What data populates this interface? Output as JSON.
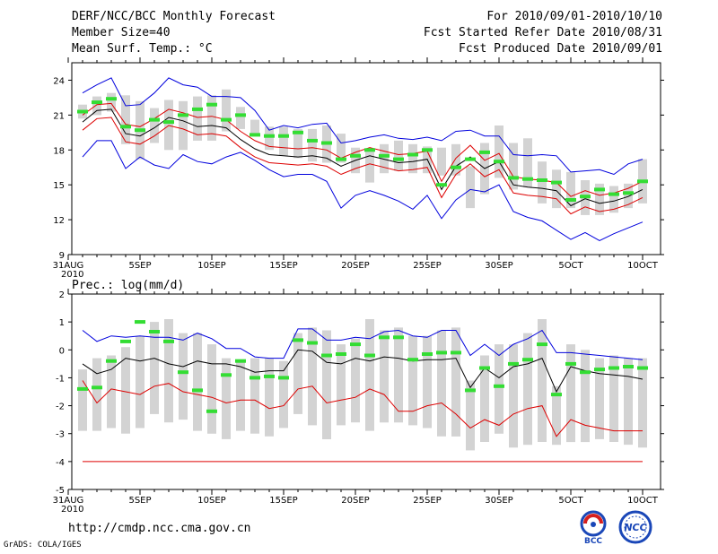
{
  "header": {
    "title": "DERF/NCC/BCC Monthly Forecast",
    "member_size": "Member Size=40",
    "variable": "Mean Surf. Temp.: °C",
    "period": "For 2010/09/01-2010/10/10",
    "started": "Fcst Started Refer Date 2010/08/31",
    "produced": "Fcst Produced Date 2010/09/01"
  },
  "footer": {
    "url": "http://cmdp.ncc.cma.gov.cn",
    "credit": "GrADS: COLA/IGES",
    "logo1": "BCC",
    "logo2": "NCC"
  },
  "colors": {
    "box": "#d3d3d3",
    "green": "#33dd33",
    "red": "#dd0000",
    "blue": "#0000dd",
    "line": "#000000"
  },
  "chart_data": [
    {
      "type": "box-ensemble",
      "title": "Mean Surf. Temp.: °C",
      "x_ticks": [
        "31AUG",
        "5SEP",
        "10SEP",
        "15SEP",
        "20SEP",
        "25SEP",
        "30SEP",
        "5OCT",
        "10OCT"
      ],
      "x_sub": "2010",
      "ylim": [
        9,
        25.5
      ],
      "yticks": [
        9,
        12,
        15,
        18,
        21,
        24
      ],
      "days": 40,
      "box_low": [
        20.7,
        21.0,
        21.3,
        18.5,
        17.2,
        18.6,
        18.0,
        18.0,
        18.8,
        18.8,
        19.6,
        19.8,
        19.2,
        18.0,
        17.5,
        17.3,
        17.0,
        16.9,
        16.9,
        16.0,
        15.2,
        16.0,
        16.2,
        16.0,
        16.0,
        15.8,
        15.8,
        13.0,
        14.2,
        15.6,
        14.6,
        14.8,
        13.4,
        13.0,
        13.0,
        12.4,
        12.4,
        12.6,
        13.0,
        13.4
      ],
      "box_high": [
        21.9,
        22.6,
        22.9,
        22.7,
        22.2,
        21.6,
        22.3,
        22.2,
        22.6,
        22.7,
        23.2,
        21.7,
        20.6,
        20.0,
        20.0,
        19.8,
        19.8,
        20.1,
        19.4,
        18.2,
        17.9,
        18.5,
        18.8,
        18.5,
        18.3,
        18.2,
        18.5,
        16.6,
        18.6,
        20.1,
        18.6,
        19.0,
        17.0,
        16.3,
        16.1,
        15.4,
        15.1,
        14.9,
        15.1,
        17.2
      ],
      "green": [
        21.3,
        22.1,
        22.4,
        20.0,
        19.7,
        20.6,
        20.4,
        21.0,
        21.5,
        21.9,
        20.6,
        21.0,
        19.3,
        19.2,
        19.2,
        19.5,
        18.8,
        18.6,
        17.2,
        17.5,
        18.0,
        17.5,
        17.2,
        17.6,
        18.0,
        15.0,
        16.5,
        17.2,
        17.8,
        17.0,
        15.6,
        15.5,
        15.4,
        15.2,
        13.7,
        14.0,
        14.6,
        14.2,
        14.3,
        15.3
      ],
      "mean": [
        20.4,
        21.4,
        21.5,
        19.4,
        19.2,
        19.9,
        20.8,
        20.5,
        20.0,
        20.1,
        19.9,
        18.9,
        18.1,
        17.6,
        17.5,
        17.4,
        17.5,
        17.3,
        16.6,
        17.1,
        17.5,
        17.2,
        16.9,
        17.0,
        17.2,
        14.6,
        16.6,
        17.4,
        16.4,
        17.0,
        15.0,
        14.8,
        14.7,
        14.5,
        13.2,
        13.8,
        13.4,
        13.6,
        14.0,
        14.6
      ],
      "ci_upper": [
        21.0,
        21.9,
        22.0,
        20.2,
        20.0,
        20.7,
        21.5,
        21.2,
        20.8,
        20.9,
        20.6,
        19.6,
        18.8,
        18.3,
        18.2,
        18.1,
        18.2,
        18.0,
        17.3,
        17.8,
        18.2,
        17.9,
        17.6,
        17.7,
        17.9,
        15.3,
        17.3,
        18.4,
        17.1,
        17.7,
        15.7,
        15.5,
        15.4,
        15.2,
        14.0,
        14.5,
        14.1,
        14.3,
        14.7,
        15.3
      ],
      "ci_lower": [
        19.7,
        20.7,
        20.8,
        18.7,
        18.5,
        19.2,
        20.1,
        19.8,
        19.3,
        19.4,
        19.2,
        18.2,
        17.4,
        16.9,
        16.8,
        16.7,
        16.8,
        16.6,
        15.9,
        16.4,
        16.8,
        16.5,
        16.2,
        16.3,
        16.5,
        13.9,
        15.9,
        16.8,
        15.7,
        16.3,
        14.3,
        14.1,
        14.0,
        13.8,
        12.5,
        13.1,
        12.7,
        12.9,
        13.3,
        13.9
      ],
      "max": [
        22.9,
        23.6,
        24.2,
        21.8,
        21.9,
        22.9,
        24.2,
        23.6,
        23.4,
        22.6,
        22.6,
        22.5,
        21.4,
        19.7,
        20.1,
        19.9,
        20.2,
        20.3,
        18.6,
        18.8,
        19.1,
        19.3,
        19.0,
        18.9,
        19.1,
        18.8,
        19.6,
        19.7,
        19.2,
        19.2,
        17.6,
        17.5,
        17.6,
        17.5,
        16.1,
        16.2,
        16.3,
        15.9,
        16.8,
        17.2
      ],
      "min": [
        17.4,
        18.8,
        18.8,
        16.4,
        17.4,
        16.7,
        16.4,
        17.6,
        17.0,
        16.8,
        17.4,
        17.8,
        17.1,
        16.3,
        15.7,
        15.9,
        15.9,
        15.3,
        13.0,
        14.1,
        14.5,
        14.1,
        13.6,
        12.9,
        14.1,
        12.1,
        13.7,
        14.6,
        14.4,
        15.0,
        12.7,
        12.2,
        11.9,
        11.1,
        10.3,
        10.9,
        10.2,
        10.8,
        11.3,
        11.8
      ]
    },
    {
      "type": "box-ensemble",
      "title": "Prec.: log(mm/d)",
      "x_ticks": [
        "31AUG",
        "5SEP",
        "10SEP",
        "15SEP",
        "20SEP",
        "25SEP",
        "30SEP",
        "5OCT",
        "10OCT"
      ],
      "x_sub": "2010",
      "ylim": [
        -5,
        2
      ],
      "yticks": [
        -5,
        -4,
        -3,
        -2,
        -1,
        0,
        1,
        2
      ],
      "days": 40,
      "floor": -4,
      "box_low": [
        -2.9,
        -2.9,
        -2.8,
        -3.0,
        -2.8,
        -2.3,
        -2.6,
        -2.5,
        -2.9,
        -3.0,
        -3.2,
        -2.9,
        -3.0,
        -3.1,
        -2.8,
        -2.3,
        -2.7,
        -3.2,
        -2.7,
        -2.6,
        -2.9,
        -2.6,
        -2.6,
        -2.7,
        -2.8,
        -3.1,
        -3.1,
        -3.6,
        -3.3,
        -3.0,
        -3.5,
        -3.4,
        -3.3,
        -3.4,
        -3.3,
        -3.3,
        -3.2,
        -3.3,
        -3.4,
        -3.5
      ],
      "box_high": [
        -0.7,
        -0.3,
        -0.2,
        0.1,
        0.5,
        1.0,
        1.1,
        0.6,
        0.6,
        0.2,
        -0.3,
        -0.4,
        -0.3,
        -0.3,
        -0.4,
        0.6,
        0.8,
        0.7,
        0.2,
        0.4,
        1.1,
        0.7,
        0.8,
        0.5,
        0.5,
        0.7,
        0.8,
        -1.1,
        -0.2,
        0.2,
        0.2,
        0.6,
        1.1,
        -1.3,
        0.2,
        0.0,
        -0.3,
        -0.2,
        -0.3,
        -0.3
      ],
      "green": [
        -1.4,
        -1.35,
        -0.4,
        0.3,
        1.0,
        0.65,
        0.3,
        -0.8,
        -1.45,
        -2.2,
        -0.9,
        -0.4,
        -1.0,
        -0.95,
        -1.0,
        0.35,
        0.25,
        -0.2,
        -0.15,
        0.2,
        -0.2,
        0.45,
        0.45,
        -0.35,
        -0.15,
        -0.1,
        -0.1,
        -1.45,
        -0.65,
        -1.3,
        -0.5,
        -0.35,
        0.2,
        -1.6,
        -0.5,
        -0.8,
        -0.7,
        -0.65,
        -0.6,
        -0.65
      ],
      "mean": [
        -0.5,
        -0.85,
        -0.7,
        -0.3,
        -0.4,
        -0.3,
        -0.5,
        -0.6,
        -0.4,
        -0.5,
        -0.5,
        -0.6,
        -0.8,
        -0.75,
        -0.75,
        0.0,
        -0.05,
        -0.45,
        -0.5,
        -0.3,
        -0.4,
        -0.25,
        -0.3,
        -0.4,
        -0.35,
        -0.35,
        -0.3,
        -1.35,
        -0.65,
        -1.0,
        -0.6,
        -0.5,
        -0.3,
        -1.5,
        -0.6,
        -0.75,
        -0.85,
        -0.9,
        -0.95,
        -1.05
      ],
      "mean_low": [
        -1.1,
        -1.9,
        -1.4,
        -1.5,
        -1.6,
        -1.3,
        -1.2,
        -1.5,
        -1.6,
        -1.7,
        -1.9,
        -1.8,
        -1.8,
        -2.1,
        -2.0,
        -1.4,
        -1.3,
        -1.9,
        -1.8,
        -1.7,
        -1.4,
        -1.6,
        -2.2,
        -2.2,
        -2.0,
        -1.9,
        -2.3,
        -2.8,
        -2.5,
        -2.7,
        -2.3,
        -2.1,
        -2.0,
        -3.1,
        -2.5,
        -2.7,
        -2.8,
        -2.9,
        -2.9,
        -2.9
      ],
      "max": [
        0.7,
        0.3,
        0.5,
        0.45,
        0.5,
        0.45,
        0.45,
        0.35,
        0.6,
        0.4,
        0.05,
        0.05,
        -0.25,
        -0.3,
        -0.3,
        0.75,
        0.75,
        0.35,
        0.35,
        0.45,
        0.4,
        0.65,
        0.7,
        0.5,
        0.45,
        0.7,
        0.7,
        -0.2,
        0.2,
        -0.2,
        0.2,
        0.4,
        0.7,
        -0.1,
        -0.1,
        -0.15,
        -0.2,
        -0.25,
        -0.3,
        -0.35
      ]
    }
  ]
}
